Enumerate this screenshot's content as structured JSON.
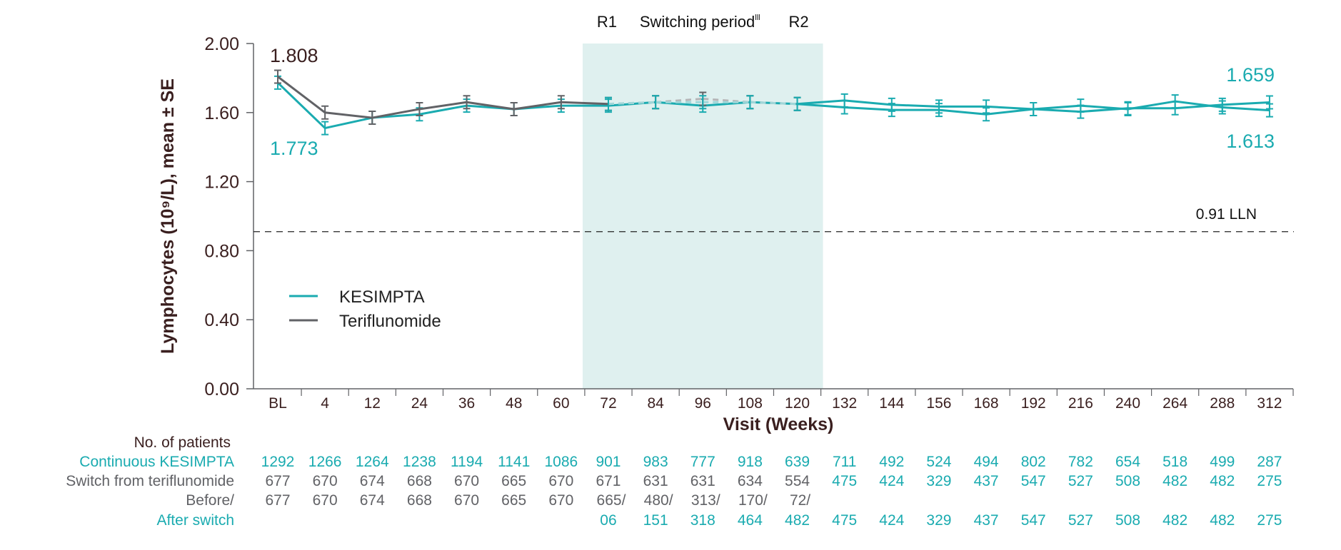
{
  "chart_data": {
    "type": "line",
    "xlabel": "Visit (Weeks)",
    "ylabel": "Lymphocytes (10⁹/L), mean ± SE",
    "categories": [
      "BL",
      "4",
      "12",
      "24",
      "36",
      "48",
      "60",
      "72",
      "84",
      "96",
      "108",
      "120",
      "132",
      "144",
      "156",
      "168",
      "192",
      "216",
      "240",
      "264",
      "288",
      "312"
    ],
    "yticks": [
      "0.00",
      "0.40",
      "0.80",
      "1.20",
      "1.60",
      "2.00"
    ],
    "ylim": [
      0,
      2.0
    ],
    "grid": false,
    "legend_position": "lower-left",
    "series": [
      {
        "name": "KESIMPTA",
        "color": "#1aabb0",
        "style": "solid",
        "values": [
          1.773,
          1.51,
          1.57,
          1.59,
          1.64,
          1.62,
          1.64,
          1.64,
          1.66,
          1.64,
          1.66,
          1.65,
          1.67,
          1.645,
          1.635,
          1.635,
          1.62,
          1.605,
          1.625,
          1.625,
          1.645,
          1.659
        ]
      },
      {
        "name": "Teriflunomide",
        "color": "#616266",
        "style": "solid",
        "dashed_after": "72",
        "values": [
          1.808,
          1.6,
          1.57,
          1.62,
          1.66,
          1.62,
          1.66,
          1.65,
          1.66,
          1.68,
          1.66,
          1.65,
          null,
          null,
          null,
          null,
          null,
          null,
          null,
          null,
          null,
          null
        ]
      },
      {
        "color": "#1aabb0",
        "style": "solid",
        "dashed_before": "120",
        "values": [
          null,
          null,
          null,
          null,
          null,
          null,
          null,
          1.65,
          1.66,
          1.66,
          1.66,
          1.65,
          1.63,
          1.615,
          1.615,
          1.59,
          1.62,
          1.64,
          1.62,
          1.665,
          1.63,
          1.613
        ]
      }
    ],
    "annotations": {
      "start_teriflunomide": "1.808",
      "start_kesimpta": "1.773",
      "end_upper": "1.659",
      "end_lower": "1.613",
      "lln_value": 0.91,
      "lln_label": "0.91 LLN",
      "r1": "R1",
      "r2": "R2",
      "switching_period": "Switching period",
      "switching_sup": "lll",
      "shade_from": "72",
      "shade_to": "120",
      "shade_color": "#dff0ef"
    },
    "patients_table": {
      "title": "No. of patients",
      "rows": [
        {
          "label": "Continuous KESIMPTA",
          "label_color": "#1aabb0",
          "values": [
            "1292",
            "1266",
            "1264",
            "1238",
            "1194",
            "1141",
            "1086",
            "901",
            "983",
            "777",
            "918",
            "639",
            "711",
            "492",
            "524",
            "494",
            "802",
            "782",
            "654",
            "518",
            "499",
            "287"
          ],
          "teal_from": 0
        },
        {
          "label": "Switch from teriflunomide",
          "label_color": "#616266",
          "values": [
            "677",
            "670",
            "674",
            "668",
            "670",
            "665",
            "670",
            "671",
            "631",
            "631",
            "634",
            "554",
            "475",
            "424",
            "329",
            "437",
            "547",
            "527",
            "508",
            "482",
            "482",
            "275"
          ],
          "teal_from": 12
        },
        {
          "label": "Before/",
          "label_color": "#616266",
          "values": [
            "677",
            "670",
            "674",
            "668",
            "670",
            "665",
            "670",
            "665/",
            "480/",
            "313/",
            "170/",
            "72/",
            "",
            "",
            "",
            "",
            "",
            "",
            "",
            "",
            "",
            ""
          ],
          "teal_from": 99
        },
        {
          "label": "After switch",
          "label_color": "#1aabb0",
          "values": [
            "",
            "",
            "",
            "",
            "",
            "",
            "",
            "06",
            "151",
            "318",
            "464",
            "482",
            "475",
            "424",
            "329",
            "437",
            "547",
            "527",
            "508",
            "482",
            "482",
            "275"
          ],
          "teal_from": 0
        }
      ]
    }
  }
}
